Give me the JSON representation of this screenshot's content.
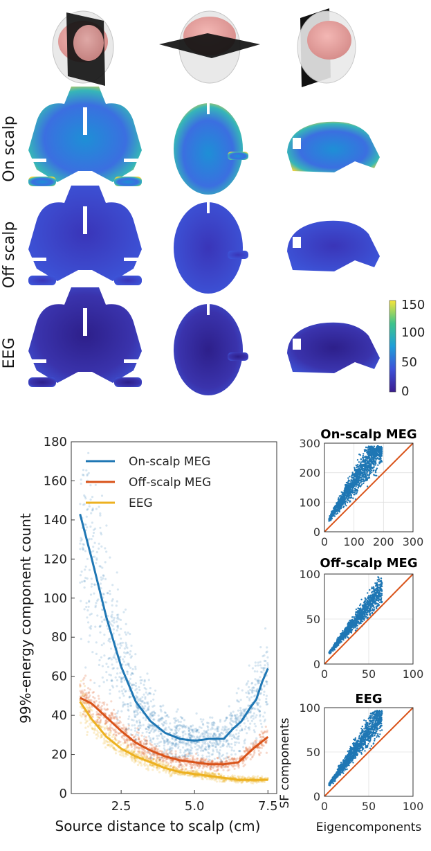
{
  "colors": {
    "on_scalp": "#1f77b4",
    "off_scalp": "#d95319",
    "eeg": "#edb120",
    "identity": "#d95319",
    "map_low": "#3b2ab0",
    "map_high": "#f7e53a"
  },
  "brain_views": [
    "coronal-slice-head",
    "axial-slice-head",
    "sagittal-slice-head"
  ],
  "row_labels": [
    "On scalp",
    "Off scalp",
    "EEG"
  ],
  "colorbar": {
    "ticks": [
      "150",
      "100",
      "50",
      "0"
    ],
    "min": 0,
    "max": 150
  },
  "chart_data": [
    {
      "type": "scatter",
      "xlabel": "Source distance to scalp (cm)",
      "ylabel": "99%-energy component count",
      "xticks": [
        "2.5",
        "5.0",
        "7.5"
      ],
      "yticks": [
        "0",
        "20",
        "40",
        "60",
        "80",
        "100",
        "120",
        "140",
        "160",
        "180"
      ],
      "xlim": [
        0.8,
        7.8
      ],
      "ylim": [
        0,
        180
      ],
      "grid": false,
      "legend": "top-left",
      "series": [
        {
          "name": "On-scalp MEG",
          "x": [
            1.1,
            1.5,
            2.0,
            2.5,
            3.0,
            3.5,
            4.0,
            4.5,
            5.0,
            5.5,
            6.0,
            6.3,
            6.6,
            6.9,
            7.1,
            7.3,
            7.5
          ],
          "values": [
            143,
            120,
            90,
            65,
            47,
            37,
            31,
            28,
            27,
            28,
            28,
            33,
            37,
            44,
            48,
            57,
            64
          ]
        },
        {
          "name": "Off-scalp MEG",
          "x": [
            1.1,
            1.5,
            2.0,
            2.5,
            3.0,
            3.5,
            4.0,
            4.5,
            5.0,
            5.5,
            6.0,
            6.5,
            7.0,
            7.5
          ],
          "values": [
            49,
            46,
            39,
            32,
            26,
            22,
            19,
            17,
            16,
            15,
            15,
            16,
            23,
            29
          ]
        },
        {
          "name": "EEG",
          "x": [
            1.1,
            1.5,
            2.0,
            2.5,
            3.0,
            3.5,
            4.0,
            4.5,
            5.0,
            5.5,
            6.0,
            6.5,
            7.0,
            7.5
          ],
          "values": [
            47,
            38,
            29,
            23,
            19,
            16,
            13,
            11,
            10,
            9,
            8,
            7,
            7,
            7
          ]
        }
      ]
    },
    {
      "type": "scatter",
      "title": "On-scalp MEG",
      "xticks": [
        "0",
        "100",
        "200",
        "300"
      ],
      "yticks": [
        "0",
        "100",
        "200",
        "300"
      ],
      "xlim": [
        0,
        300
      ],
      "ylim": [
        0,
        300
      ],
      "grid": true,
      "identity_line": true
    },
    {
      "type": "scatter",
      "title": "Off-scalp MEG",
      "xticks": [
        "0",
        "50",
        "100"
      ],
      "yticks": [
        "0",
        "50",
        "100"
      ],
      "xlim": [
        0,
        100
      ],
      "ylim": [
        0,
        100
      ],
      "grid": true,
      "identity_line": true
    },
    {
      "type": "scatter",
      "title": "EEG",
      "xticks": [
        "0",
        "50",
        "100"
      ],
      "yticks": [
        "0",
        "50",
        "100"
      ],
      "xlim": [
        0,
        100
      ],
      "ylim": [
        0,
        100
      ],
      "grid": true,
      "identity_line": true,
      "xlabel": "Eigencomponents",
      "ylabel": "SF components"
    }
  ]
}
